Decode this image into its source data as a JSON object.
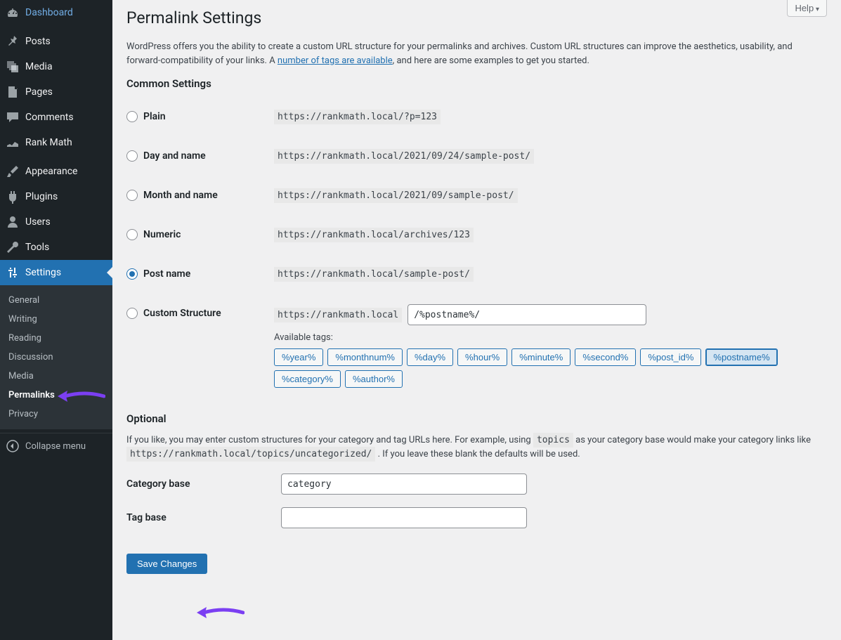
{
  "sidebar": {
    "items": [
      {
        "label": "Dashboard"
      },
      {
        "label": "Posts"
      },
      {
        "label": "Media"
      },
      {
        "label": "Pages"
      },
      {
        "label": "Comments"
      },
      {
        "label": "Rank Math"
      },
      {
        "label": "Appearance"
      },
      {
        "label": "Plugins"
      },
      {
        "label": "Users"
      },
      {
        "label": "Tools"
      },
      {
        "label": "Settings"
      }
    ],
    "submenu": [
      {
        "label": "General"
      },
      {
        "label": "Writing"
      },
      {
        "label": "Reading"
      },
      {
        "label": "Discussion"
      },
      {
        "label": "Media"
      },
      {
        "label": "Permalinks"
      },
      {
        "label": "Privacy"
      }
    ],
    "collapse": "Collapse menu"
  },
  "header": {
    "help": "Help",
    "title": "Permalink Settings",
    "intro_1": "WordPress offers you the ability to create a custom URL structure for your permalinks and archives. Custom URL structures can improve the aesthetics, usability, and forward-compatibility of your links. A ",
    "intro_link": "number of tags are available",
    "intro_2": ", and here are some examples to get you started."
  },
  "common": {
    "heading": "Common Settings",
    "options": [
      {
        "label": "Plain",
        "example": "https://rankmath.local/?p=123"
      },
      {
        "label": "Day and name",
        "example": "https://rankmath.local/2021/09/24/sample-post/"
      },
      {
        "label": "Month and name",
        "example": "https://rankmath.local/2021/09/sample-post/"
      },
      {
        "label": "Numeric",
        "example": "https://rankmath.local/archives/123"
      },
      {
        "label": "Post name",
        "example": "https://rankmath.local/sample-post/"
      }
    ],
    "custom_label": "Custom Structure",
    "custom_prefix": "https://rankmath.local",
    "custom_value": "/%postname%/",
    "available_tags_label": "Available tags:",
    "tags": [
      "%year%",
      "%monthnum%",
      "%day%",
      "%hour%",
      "%minute%",
      "%second%",
      "%post_id%",
      "%postname%",
      "%category%",
      "%author%"
    ],
    "active_tag_index": 7
  },
  "optional": {
    "heading": "Optional",
    "intro_1": "If you like, you may enter custom structures for your category and tag URLs here. For example, using ",
    "code_1": "topics",
    "intro_2": " as your category base would make your category links like ",
    "code_2": "https://rankmath.local/topics/uncategorized/",
    "intro_3": " . If you leave these blank the defaults will be used.",
    "category_label": "Category base",
    "category_value": "category",
    "tag_label": "Tag base",
    "tag_value": ""
  },
  "save_label": "Save Changes",
  "colors": {
    "accent": "#2271b1",
    "arrow": "#7b3ff2"
  }
}
